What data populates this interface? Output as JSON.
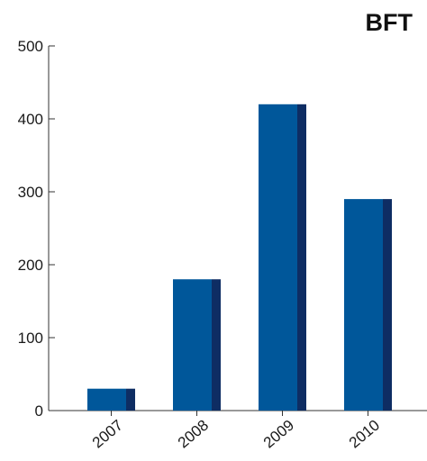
{
  "chart_data": {
    "type": "bar",
    "title": "BFT",
    "xlabel": "",
    "ylabel": "",
    "categories": [
      "2007",
      "2008",
      "2009",
      "2010"
    ],
    "values": [
      30,
      180,
      420,
      290
    ],
    "ylim": [
      0,
      500
    ],
    "yticks": [
      0,
      100,
      200,
      300,
      400,
      500
    ],
    "grid": false,
    "legend": "none",
    "colors": {
      "bar_front": "#00579a",
      "bar_side": "#0e2d63",
      "axis": "#333333"
    }
  }
}
